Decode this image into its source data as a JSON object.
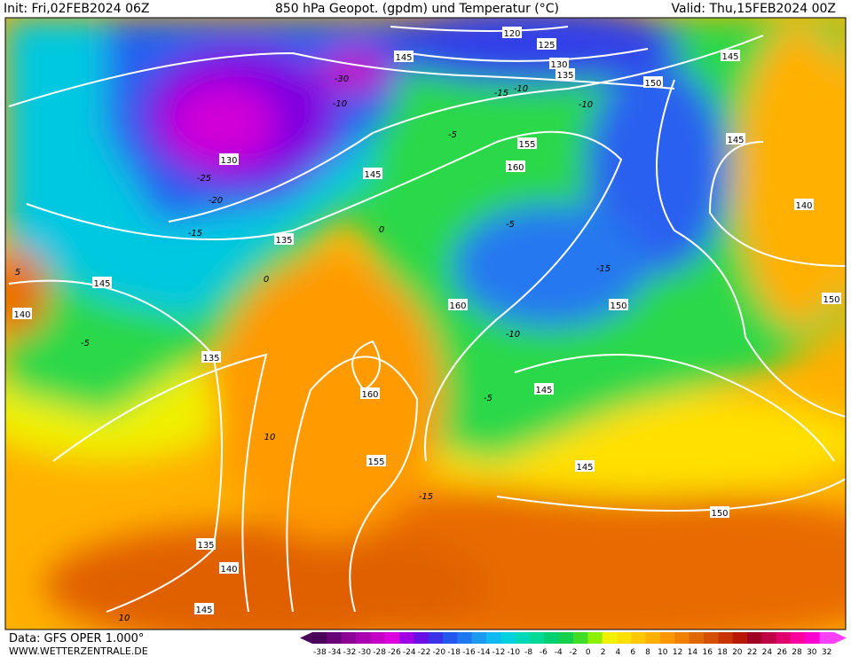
{
  "header": {
    "init": "Init: Fri,02FEB2024 06Z",
    "title": "850 hPa Geopot. (gpdm) und Temperatur (°C)",
    "valid": "Valid: Thu,15FEB2024 00Z"
  },
  "footer": {
    "data_source": "Data: GFS OPER 1.000°",
    "website": "WWW.WETTERZENTRALE.DE"
  },
  "legend": {
    "labels": [
      -38,
      -34,
      -32,
      -30,
      -28,
      -26,
      -24,
      -22,
      -20,
      -18,
      -16,
      -14,
      -12,
      -10,
      -8,
      -6,
      -4,
      -2,
      0,
      2,
      4,
      6,
      8,
      10,
      12,
      14,
      16,
      18,
      20,
      22,
      24,
      26,
      28,
      30,
      32
    ],
    "colors": [
      "#4a0058",
      "#6a0078",
      "#8c0096",
      "#a800ae",
      "#c400c6",
      "#dc00dc",
      "#a000e6",
      "#6a10e6",
      "#3c30e8",
      "#2456f0",
      "#2078f0",
      "#1c9af0",
      "#10baf0",
      "#00d0e0",
      "#00d8b8",
      "#00d896",
      "#00d070",
      "#14d04c",
      "#40dc28",
      "#8cf000",
      "#f0f000",
      "#ffe000",
      "#ffc800",
      "#ffb000",
      "#ff9800",
      "#f08000",
      "#e06800",
      "#d45000",
      "#c83400",
      "#b81800",
      "#a00024",
      "#c00046",
      "#e0006e",
      "#ff00a0",
      "#ff00d0",
      "#ff40ff"
    ]
  },
  "map": {
    "geopotential_labels": [
      120,
      125,
      130,
      135,
      145,
      150,
      145,
      135,
      130,
      140,
      145,
      140,
      135,
      160,
      155,
      160,
      145,
      150,
      160,
      155,
      145,
      135,
      140,
      145,
      145,
      150,
      145,
      150
    ],
    "temperature_labels": [
      -30,
      -25,
      -20,
      -15,
      -10,
      -5,
      0,
      -15,
      -10,
      -5,
      -15,
      -10,
      -5,
      0,
      5,
      10,
      -5,
      -10,
      -15,
      10
    ]
  }
}
